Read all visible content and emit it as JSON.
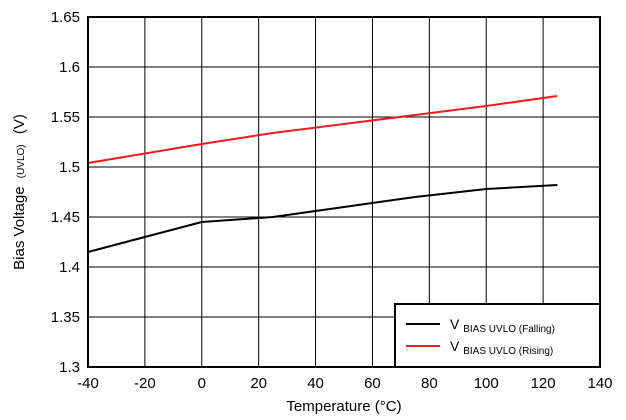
{
  "chart_data": {
    "type": "line",
    "xlabel": "Temperature (°C)",
    "ylabel": {
      "main": "Bias Voltage",
      "sub": "(UVLO)",
      "unit": "(V)"
    },
    "xlim": [
      -40,
      140
    ],
    "ylim": [
      1.3,
      1.65
    ],
    "x_ticks": [
      "-40",
      "-20",
      "0",
      "20",
      "40",
      "60",
      "80",
      "100",
      "120",
      "140"
    ],
    "y_ticks": [
      "1.3",
      "1.35",
      "1.4",
      "1.45",
      "1.5",
      "1.55",
      "1.6",
      "1.65"
    ],
    "grid": true,
    "legend_position": "bottom-right",
    "series": [
      {
        "name": "VBIAS UVLO (Falling)",
        "legend": {
          "main": "V",
          "sub": "BIAS UVLO (Falling)"
        },
        "color": "#000000",
        "x": [
          -40,
          0,
          25,
          50,
          75,
          100,
          125
        ],
        "y": [
          1.415,
          1.445,
          1.45,
          1.46,
          1.47,
          1.478,
          1.482
        ]
      },
      {
        "name": "VBIAS UVLO (Rising)",
        "legend": {
          "main": "V",
          "sub": "BIAS UVLO (Rising)"
        },
        "color": "#ee1c1c",
        "x": [
          -40,
          0,
          25,
          50,
          75,
          100,
          125
        ],
        "y": [
          1.504,
          1.523,
          1.534,
          1.543,
          1.552,
          1.561,
          1.571
        ]
      }
    ]
  }
}
